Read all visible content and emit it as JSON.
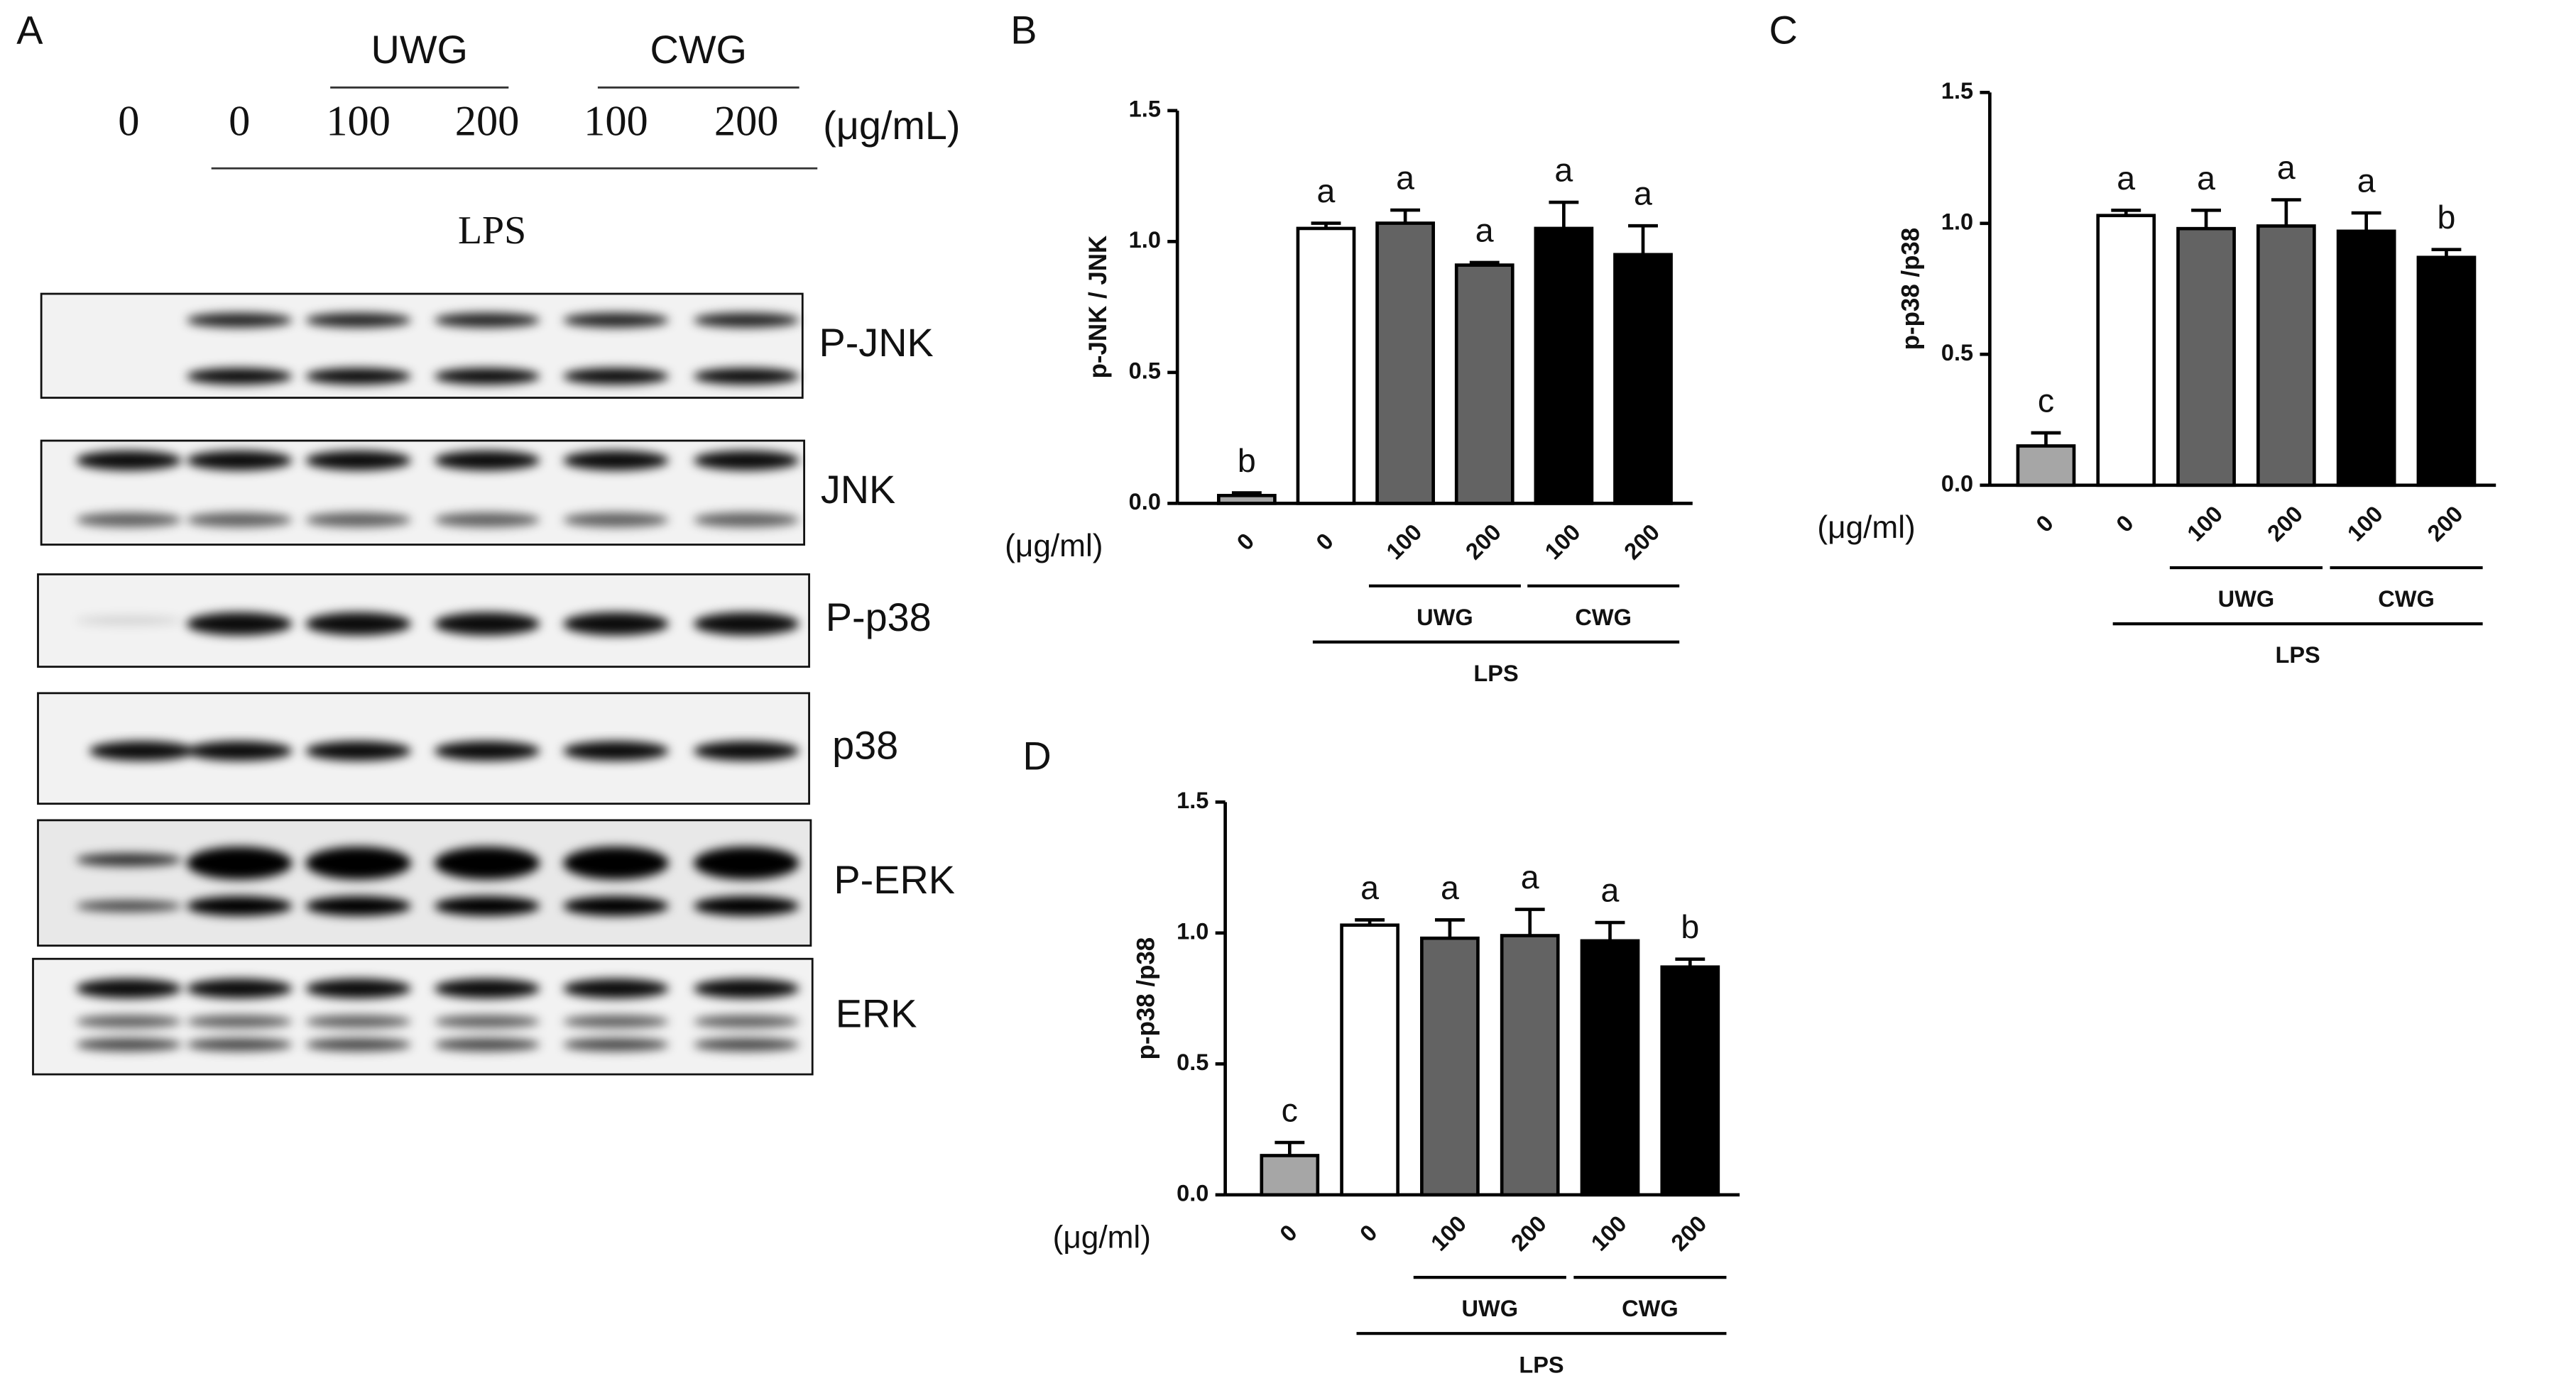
{
  "blot": {
    "panel": "A",
    "groups": [
      "UWG",
      "CWG"
    ],
    "doses": [
      "0",
      "0",
      "100",
      "200",
      "100",
      "200"
    ],
    "unit": "(μg/mL)",
    "treatment": "LPS",
    "rows": [
      "P-JNK",
      "JNK",
      "P-p38",
      "p38",
      "P-ERK",
      "ERK"
    ]
  },
  "chart_data": [
    {
      "type": "bar",
      "panel": "B",
      "y_label": "p-JNK / JNK",
      "unit": "(μg/ml)",
      "categories": [
        "0",
        "0",
        "100",
        "200",
        "100",
        "200"
      ],
      "values": [
        0.03,
        1.05,
        1.07,
        0.91,
        1.05,
        0.95
      ],
      "errors": [
        0.01,
        0.02,
        0.05,
        0.01,
        0.1,
        0.11
      ],
      "letters": [
        "b",
        "a",
        "a",
        "a",
        "a",
        "a"
      ],
      "colors": [
        "#a6a6a6",
        "#ffffff",
        "#636363",
        "#636363",
        "#000000",
        "#000000"
      ],
      "groups": [
        "UWG",
        "CWG"
      ],
      "treatment": "LPS",
      "ylim": [
        0,
        1.5
      ],
      "yticks": [
        {
          "value": 0,
          "label": "0.0"
        },
        0.5,
        {
          "value": 1,
          "label": "1.0"
        },
        1.5
      ]
    },
    {
      "type": "bar",
      "panel": "C",
      "y_label": "p-p38 /p38",
      "unit": "(μg/ml)",
      "categories": [
        "0",
        "0",
        "100",
        "200",
        "100",
        "200"
      ],
      "values": [
        0.15,
        1.03,
        0.98,
        0.99,
        0.97,
        0.87
      ],
      "errors": [
        0.05,
        0.02,
        0.07,
        0.1,
        0.07,
        0.03
      ],
      "letters": [
        "c",
        "a",
        "a",
        "a",
        "a",
        "b"
      ],
      "colors": [
        "#a6a6a6",
        "#ffffff",
        "#636363",
        "#636363",
        "#000000",
        "#000000"
      ],
      "groups": [
        "UWG",
        "CWG"
      ],
      "treatment": "LPS",
      "ylim": [
        0,
        1.5
      ],
      "yticks": [
        {
          "value": 0,
          "label": "0.0"
        },
        0.5,
        {
          "value": 1,
          "label": "1.0"
        },
        1.5
      ]
    },
    {
      "type": "bar",
      "panel": "D",
      "y_label": "p-p38 /p38",
      "unit": "(μg/ml)",
      "categories": [
        "0",
        "0",
        "100",
        "200",
        "100",
        "200"
      ],
      "values": [
        0.15,
        1.03,
        0.98,
        0.99,
        0.97,
        0.87
      ],
      "errors": [
        0.05,
        0.02,
        0.07,
        0.1,
        0.07,
        0.03
      ],
      "letters": [
        "c",
        "a",
        "a",
        "a",
        "a",
        "b"
      ],
      "colors": [
        "#a6a6a6",
        "#ffffff",
        "#636363",
        "#636363",
        "#000000",
        "#000000"
      ],
      "groups": [
        "UWG",
        "CWG"
      ],
      "treatment": "LPS",
      "ylim": [
        0,
        1.5
      ],
      "yticks": [
        {
          "value": 0,
          "label": "0.0"
        },
        0.5,
        {
          "value": 1,
          "label": "1.0"
        },
        1.5
      ]
    }
  ]
}
